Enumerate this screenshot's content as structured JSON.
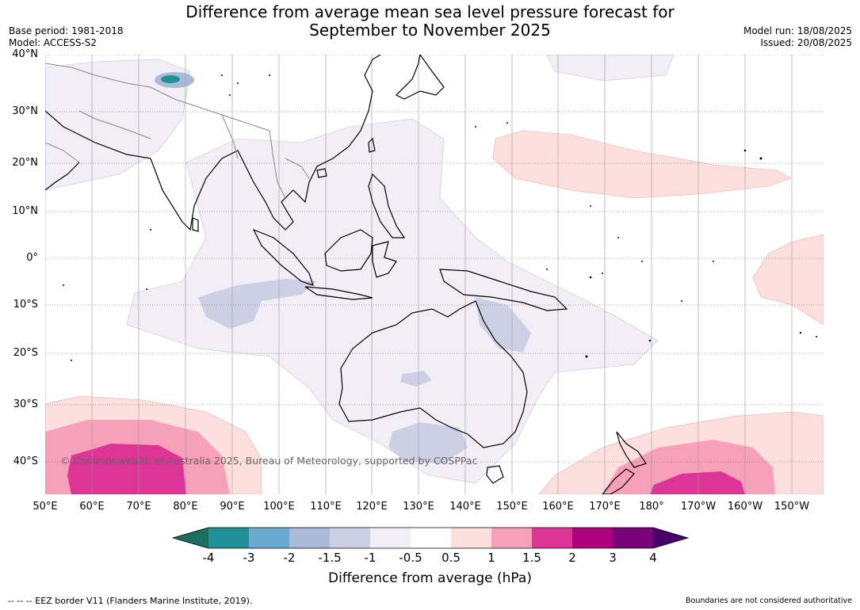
{
  "title_line1": "Difference from average mean sea level pressure forecast for",
  "title_line2": "September to November 2025",
  "base_period": "Base period: 1981-2018",
  "model": "Model: ACCESS-S2",
  "model_run": "Model run: 18/08/2025",
  "issued": "Issued: 20/08/2025",
  "copyright": "© Commonwealth of Australia 2025, Bureau of Meteorology, supported by COSPPac",
  "lat_labels": [
    "40°N",
    "30°N",
    "20°N",
    "10°N",
    "0°",
    "10°S",
    "20°S",
    "30°S",
    "40°S"
  ],
  "lon_labels": [
    "50°E",
    "60°E",
    "70°E",
    "80°E",
    "90°E",
    "100°E",
    "110°E",
    "120°E",
    "130°E",
    "140°E",
    "150°E",
    "160°E",
    "170°E",
    "180°",
    "170°W",
    "160°W",
    "150°W"
  ],
  "colorbar": {
    "ticks": [
      "-4",
      "-3",
      "-2",
      "-1.5",
      "-1",
      "-0.5",
      "0.5",
      "1",
      "1.5",
      "2",
      "3",
      "4"
    ],
    "colors": [
      "#1a6f63",
      "#1e9096",
      "#6aaad1",
      "#a9bbd8",
      "#cdd0e4",
      "#f1eef6",
      "#ffffff",
      "#fde0dd",
      "#f7a0ba",
      "#dd3497",
      "#ae017e",
      "#7a0177",
      "#49006a"
    ],
    "label": "Difference from average (hPa)"
  },
  "footer_left": "--  --  -- EEZ border V11 (Flanders Marine Institute, 2019).",
  "footer_right": "Boundaries are not considered authoritative"
}
